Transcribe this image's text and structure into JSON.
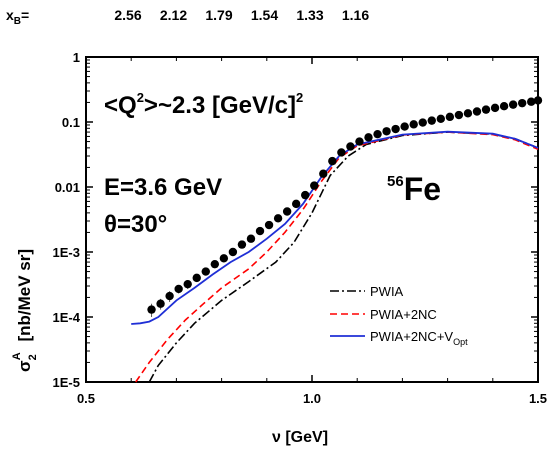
{
  "chart_data": {
    "type": "scatter",
    "xlabel": "ν [GeV]",
    "ylabel": {
      "sigma": "σ",
      "sup": "A",
      "sub": "2",
      "units": "[nb/MeV sr]"
    },
    "xlim": [
      0.5,
      1.5
    ],
    "ylim": [
      1e-05,
      1
    ],
    "y_scale": "log",
    "x_ticks": [
      "0.5",
      "1.0",
      "1.5"
    ],
    "y_ticks": [
      {
        "value": 1,
        "label": "1"
      },
      {
        "value": 0.1,
        "label": "0.1"
      },
      {
        "value": 0.01,
        "label": "0.01"
      },
      {
        "value": 0.001,
        "label": "1E-3"
      },
      {
        "value": 0.0001,
        "label": "1E-4"
      },
      {
        "value": 1e-05,
        "label": "1E-5"
      }
    ],
    "top_axis": {
      "label": {
        "main": "x",
        "sub": "B",
        "suffix": "="
      },
      "ticks": [
        "2.56",
        "2.12",
        "1.79",
        "1.54",
        "1.33",
        "1.16"
      ]
    },
    "annotations": {
      "q2_main": "<Q",
      "q2_sup": "2",
      "q2_tail": ">~2.3 [GeV/c]",
      "q2_tail_sup": "2",
      "energy": "E=3.6 GeV",
      "angle": "θ=30°",
      "nucleus_sup": "56",
      "nucleus": "Fe"
    },
    "legend_placement": "bottom-right",
    "data_points": {
      "name": "data",
      "color": "#000000",
      "x": [
        0.645,
        0.665,
        0.685,
        0.705,
        0.725,
        0.745,
        0.765,
        0.785,
        0.805,
        0.825,
        0.845,
        0.865,
        0.885,
        0.905,
        0.925,
        0.945,
        0.965,
        0.985,
        1.005,
        1.025,
        1.045,
        1.065,
        1.085,
        1.105,
        1.125,
        1.145,
        1.165,
        1.185,
        1.205,
        1.225,
        1.245,
        1.265,
        1.285,
        1.305,
        1.325,
        1.345,
        1.365,
        1.385,
        1.405,
        1.425,
        1.445,
        1.465,
        1.485,
        1.5
      ],
      "y": [
        0.00013,
        0.00016,
        0.00021,
        0.00027,
        0.00032,
        0.0004,
        0.0005,
        0.00065,
        0.0008,
        0.001,
        0.0013,
        0.0016,
        0.0021,
        0.0026,
        0.0033,
        0.0042,
        0.0055,
        0.0075,
        0.0105,
        0.016,
        0.025,
        0.034,
        0.042,
        0.05,
        0.058,
        0.065,
        0.072,
        0.078,
        0.085,
        0.092,
        0.098,
        0.105,
        0.112,
        0.12,
        0.128,
        0.136,
        0.145,
        0.155,
        0.165,
        0.175,
        0.185,
        0.195,
        0.205,
        0.215
      ],
      "err": [
        3e-05,
        3e-05,
        4e-05,
        4e-05,
        5e-05,
        5e-05,
        6e-05,
        7e-05,
        8e-05,
        0.0001,
        0.00012,
        0.00014,
        0.00016,
        0.0002,
        0.00025,
        0.0003,
        0.0004,
        0.0005,
        0.0007,
        0.001,
        0.0015,
        0.002,
        0.002,
        0.0025,
        0.003,
        0.003,
        0.0035,
        0.004,
        0.004,
        0.0045,
        0.005,
        0.005,
        0.0055,
        0.006,
        0.006,
        0.0065,
        0.007,
        0.0075,
        0.008,
        0.0085,
        0.009,
        0.0095,
        0.01,
        0.0105
      ]
    },
    "series": [
      {
        "name": "PWIA",
        "color": "#000000",
        "dash": "dashdot",
        "x": [
          0.64,
          0.66,
          0.7,
          0.74,
          0.8,
          0.86,
          0.92,
          0.96,
          1.0,
          1.04,
          1.08,
          1.12,
          1.2,
          1.3,
          1.4,
          1.45,
          1.5
        ],
        "y": [
          1e-05,
          1.8e-05,
          4e-05,
          8e-05,
          0.00018,
          0.00035,
          0.0007,
          0.0014,
          0.004,
          0.015,
          0.03,
          0.045,
          0.062,
          0.07,
          0.065,
          0.055,
          0.04
        ]
      },
      {
        "name": "PWIA+2NC",
        "color": "#ff0000",
        "dash": "dashed",
        "x": [
          0.61,
          0.64,
          0.68,
          0.72,
          0.76,
          0.8,
          0.86,
          0.9,
          0.94,
          0.98,
          1.02,
          1.06,
          1.1,
          1.2,
          1.3,
          1.4,
          1.45,
          1.5
        ],
        "y": [
          1e-05,
          2e-05,
          4.5e-05,
          9e-05,
          0.00016,
          0.00028,
          0.00055,
          0.001,
          0.002,
          0.0045,
          0.012,
          0.028,
          0.043,
          0.063,
          0.07,
          0.064,
          0.053,
          0.038
        ]
      },
      {
        "name": "PWIA+2NC+V",
        "name_sub": "Opt",
        "color": "#1f2fd6",
        "dash": "solid",
        "x": [
          0.6,
          0.62,
          0.64,
          0.66,
          0.7,
          0.74,
          0.78,
          0.82,
          0.86,
          0.9,
          0.94,
          0.98,
          1.02,
          1.06,
          1.1,
          1.2,
          1.3,
          1.4,
          1.45,
          1.5
        ],
        "y": [
          7.8e-05,
          8e-05,
          8.5e-05,
          0.0001,
          0.00018,
          0.00028,
          0.00045,
          0.0007,
          0.001,
          0.0016,
          0.0027,
          0.0055,
          0.014,
          0.03,
          0.045,
          0.064,
          0.071,
          0.066,
          0.055,
          0.04
        ]
      }
    ]
  }
}
